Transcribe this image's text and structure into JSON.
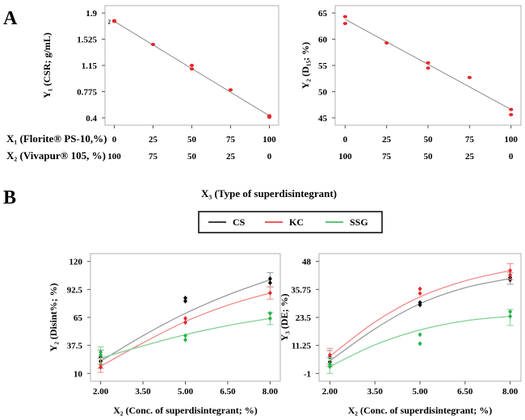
{
  "panel_a_letter": "A",
  "panel_b_letter": "B",
  "row_a": {
    "x1_label": "X₁ (Florite® PS-10,%)",
    "x2_label": "X₂ (Vivapur® 105, %)",
    "x1_values": [
      "0",
      "25",
      "50",
      "75",
      "100"
    ],
    "x2_values": [
      "100",
      "75",
      "50",
      "25",
      "0"
    ]
  },
  "legend": {
    "title": "X₃ (Type of superdisintegrant)",
    "entries": [
      {
        "name": "CS",
        "color": "#000000"
      },
      {
        "name": "KC",
        "color": "#e8262b"
      },
      {
        "name": "SSG",
        "color": "#27b24a"
      }
    ]
  },
  "chart_data": [
    {
      "id": "csr",
      "type": "scatter",
      "title": "",
      "ylabel": "Y₁ (CSR; g/mL)",
      "xlabel": "",
      "x_ticks": [
        0,
        25,
        50,
        75,
        100
      ],
      "x_tick_labels": [
        "0",
        "25",
        "50",
        "75",
        "100"
      ],
      "xlim": [
        0,
        100
      ],
      "y_ticks": [
        0.4,
        0.775,
        1.15,
        1.525,
        1.9
      ],
      "y_tick_labels": [
        "0.4",
        "0.775",
        "1.15",
        "1.525",
        "1.9"
      ],
      "ylim": [
        0.4,
        1.9
      ],
      "fit_line": {
        "x": [
          0,
          100
        ],
        "y": [
          1.78,
          0.43
        ]
      },
      "points": [
        {
          "x": 0,
          "y": 1.79
        },
        {
          "x": 0,
          "y": 1.78
        },
        {
          "x": 25,
          "y": 1.45
        },
        {
          "x": 50,
          "y": 1.15
        },
        {
          "x": 50,
          "y": 1.1
        },
        {
          "x": 75,
          "y": 0.8
        },
        {
          "x": 100,
          "y": 0.43
        },
        {
          "x": 100,
          "y": 0.41
        }
      ],
      "point_color": "#e8262b",
      "marker_note": "2"
    },
    {
      "id": "d15",
      "type": "scatter",
      "title": "",
      "ylabel": "Y₂ (D₁₅; %)",
      "xlabel": "",
      "x_ticks": [
        0,
        25,
        50,
        75,
        100
      ],
      "x_tick_labels": [
        "0",
        "25",
        "50",
        "75",
        "100"
      ],
      "xlim": [
        0,
        100
      ],
      "y_ticks": [
        45,
        50,
        55,
        60,
        65
      ],
      "y_tick_labels": [
        "45",
        "50",
        "55",
        "60",
        "65"
      ],
      "ylim": [
        45,
        65
      ],
      "fit_line": {
        "x": [
          0,
          100
        ],
        "y": [
          63.8,
          46.6
        ]
      },
      "points": [
        {
          "x": 0,
          "y": 64.3
        },
        {
          "x": 0,
          "y": 63.0
        },
        {
          "x": 25,
          "y": 59.3
        },
        {
          "x": 50,
          "y": 55.5
        },
        {
          "x": 50,
          "y": 54.5
        },
        {
          "x": 75,
          "y": 52.7
        },
        {
          "x": 100,
          "y": 46.6
        },
        {
          "x": 100,
          "y": 45.6
        }
      ],
      "point_color": "#e8262b"
    },
    {
      "id": "disint",
      "type": "scatter",
      "title": "",
      "ylabel": "Y₂ (Disint%; %)",
      "xlabel": "X₂ (Conc. of superdisintegrant; %)",
      "x_ticks": [
        2,
        3.5,
        5,
        6.5,
        8
      ],
      "x_tick_labels": [
        "2.00",
        "3.50",
        "5.00",
        "6.50",
        "8.00"
      ],
      "xlim": [
        2,
        8
      ],
      "y_ticks": [
        10,
        37.5,
        65,
        92.5,
        120
      ],
      "y_tick_labels": [
        "10",
        "37.5",
        "65",
        "92.5",
        "120"
      ],
      "ylim": [
        10,
        120
      ],
      "series": [
        {
          "name": "CS",
          "color": "#000000",
          "curve_color": "#9a9a9a",
          "curve": {
            "x": [
              2,
              3.5,
              5,
              6.5,
              8
            ],
            "y": [
              22,
              47,
              69,
              87,
              102
            ]
          },
          "points": [
            {
              "x": 2,
              "y": 22
            },
            {
              "x": 2,
              "y": 26
            },
            {
              "x": 5,
              "y": 84
            },
            {
              "x": 5,
              "y": 81
            },
            {
              "x": 8,
              "y": 103
            },
            {
              "x": 8,
              "y": 99
            }
          ],
          "errors": [
            {
              "x": 2,
              "low": 15,
              "high": 33
            },
            {
              "x": 8,
              "low": 95,
              "high": 109
            }
          ]
        },
        {
          "name": "KC",
          "color": "#e8262b",
          "curve_color": "#f08a8a",
          "curve": {
            "x": [
              2,
              3.5,
              5,
              6.5,
              8
            ],
            "y": [
              17,
              40,
              61,
              77,
              89
            ]
          },
          "points": [
            {
              "x": 2,
              "y": 19
            },
            {
              "x": 2,
              "y": 16
            },
            {
              "x": 5,
              "y": 64
            },
            {
              "x": 5,
              "y": 60
            },
            {
              "x": 8,
              "y": 89
            }
          ],
          "errors": [
            {
              "x": 2,
              "low": 11,
              "high": 25
            },
            {
              "x": 8,
              "low": 83,
              "high": 95
            }
          ]
        },
        {
          "name": "SSG",
          "color": "#27b24a",
          "curve_color": "#7ed091",
          "curve": {
            "x": [
              2,
              3.5,
              5,
              6.5,
              8
            ],
            "y": [
              25,
              37,
              48,
              57,
              64
            ]
          },
          "points": [
            {
              "x": 2,
              "y": 28
            },
            {
              "x": 2,
              "y": 31
            },
            {
              "x": 5,
              "y": 47
            },
            {
              "x": 5,
              "y": 43
            },
            {
              "x": 8,
              "y": 69
            },
            {
              "x": 8,
              "y": 64
            }
          ],
          "errors": [
            {
              "x": 2,
              "low": 19,
              "high": 36
            },
            {
              "x": 8,
              "low": 58,
              "high": 70
            }
          ]
        }
      ]
    },
    {
      "id": "de",
      "type": "scatter",
      "title": "",
      "ylabel": "Y₃ (DE; %)",
      "xlabel": "X₂ (Conc. of superdisintegrant; %)",
      "x_ticks": [
        2,
        3.5,
        5,
        6.5,
        8
      ],
      "x_tick_labels": [
        "2.00",
        "3.50",
        "5.00",
        "6.50",
        "8.00"
      ],
      "xlim": [
        2,
        8
      ],
      "y_ticks": [
        -1,
        11.25,
        23.5,
        35.75,
        48
      ],
      "y_tick_labels": [
        "-1",
        "11.25",
        "23.5",
        "35.75",
        "48"
      ],
      "ylim": [
        -1,
        48
      ],
      "series": [
        {
          "name": "CS",
          "color": "#000000",
          "curve_color": "#9a9a9a",
          "curve": {
            "x": [
              2,
              3.5,
              5,
              6.5,
              8
            ],
            "y": [
              4.5,
              18.5,
              29.5,
              36.5,
              40.5
            ]
          },
          "points": [
            {
              "x": 2,
              "y": 6
            },
            {
              "x": 2,
              "y": 4
            },
            {
              "x": 5,
              "y": 30
            },
            {
              "x": 5,
              "y": 29
            },
            {
              "x": 8,
              "y": 41
            },
            {
              "x": 8,
              "y": 40
            }
          ],
          "errors": [
            {
              "x": 2,
              "low": 2,
              "high": 9
            },
            {
              "x": 8,
              "low": 38,
              "high": 43
            }
          ]
        },
        {
          "name": "KC",
          "color": "#e8262b",
          "curve_color": "#f08a8a",
          "curve": {
            "x": [
              2,
              3.5,
              5,
              6.5,
              8
            ],
            "y": [
              6.5,
              21.5,
              32.5,
              39.5,
              44
            ]
          },
          "points": [
            {
              "x": 2,
              "y": 7
            },
            {
              "x": 5,
              "y": 36
            },
            {
              "x": 5,
              "y": 34
            },
            {
              "x": 8,
              "y": 44
            },
            {
              "x": 8,
              "y": 42
            }
          ],
          "errors": [
            {
              "x": 2,
              "low": 3,
              "high": 10
            },
            {
              "x": 8,
              "low": 40,
              "high": 47
            }
          ]
        },
        {
          "name": "SSG",
          "color": "#27b24a",
          "curve_color": "#7ed091",
          "curve": {
            "x": [
              2,
              3.5,
              5,
              6.5,
              8
            ],
            "y": [
              2,
              11.5,
              18,
              22,
              24
            ]
          },
          "points": [
            {
              "x": 2,
              "y": 3
            },
            {
              "x": 2,
              "y": 2
            },
            {
              "x": 5,
              "y": 16
            },
            {
              "x": 5,
              "y": 12
            },
            {
              "x": 8,
              "y": 26
            },
            {
              "x": 8,
              "y": 24
            }
          ],
          "errors": [
            {
              "x": 2,
              "low": -1,
              "high": 6
            },
            {
              "x": 8,
              "low": 20,
              "high": 27
            }
          ]
        }
      ]
    }
  ]
}
